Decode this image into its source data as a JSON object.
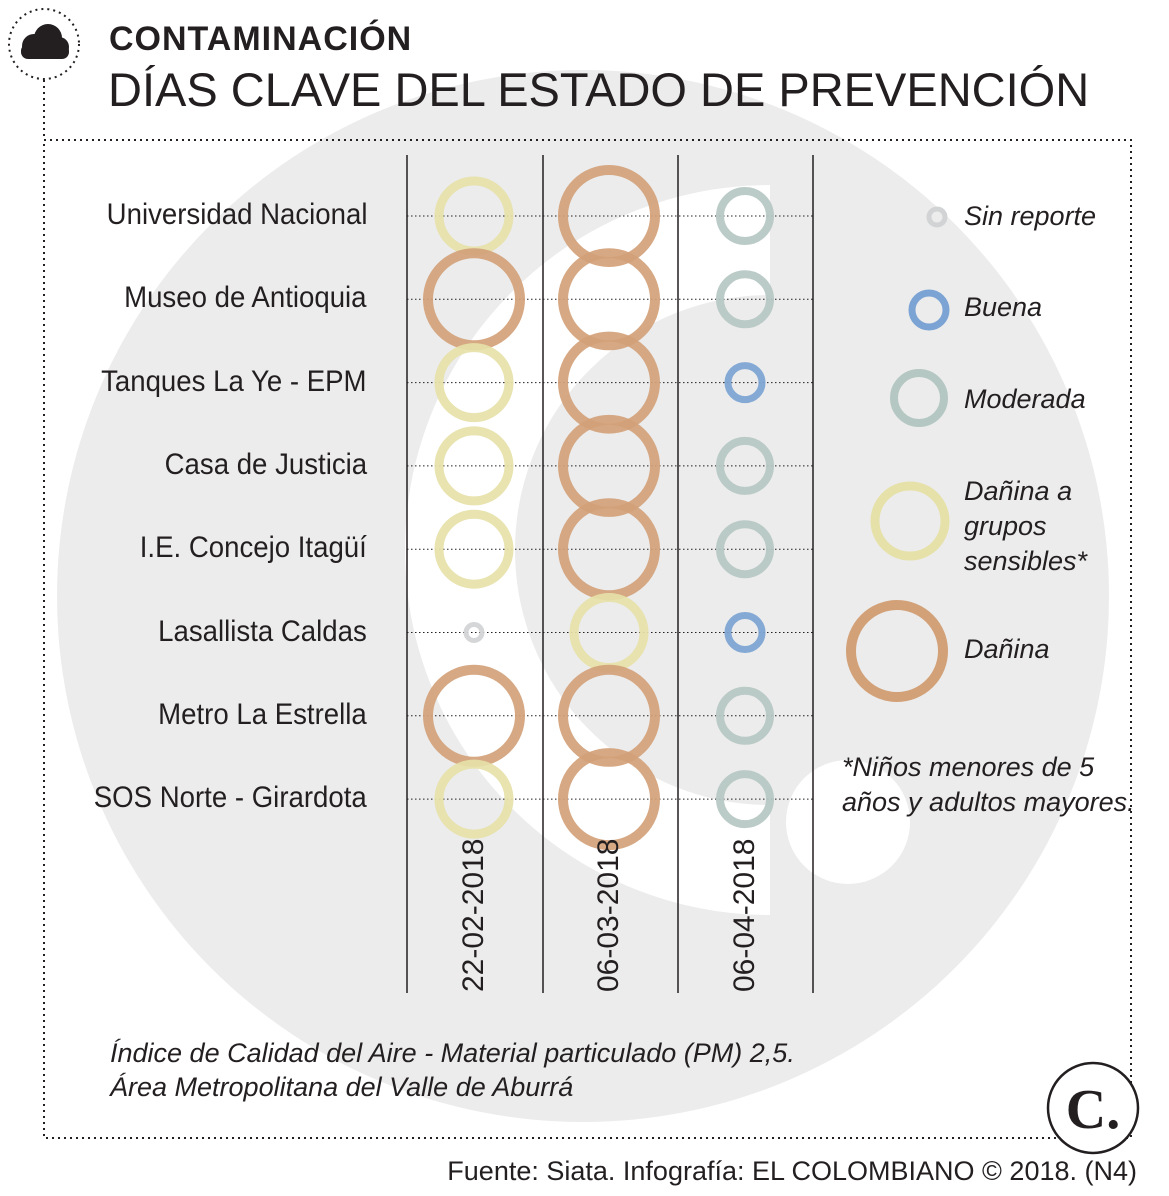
{
  "header": {
    "kicker": "CONTAMINACIÓN",
    "title": "DÍAS CLAVE DEL ESTADO DE PREVENCIÓN"
  },
  "colors": {
    "sin_reporte": "#d1d3d4",
    "buena": "#7ba3d3",
    "moderada": "#b5c7c2",
    "danina_grupos": "#e6e1a8",
    "danina": "#d2a178",
    "watermark": "#ececec"
  },
  "chart_data": {
    "type": "dot-matrix",
    "dates": [
      "22-02-2018",
      "06-03-2018",
      "06-04-2018"
    ],
    "stations": [
      "Universidad Nacional",
      "Museo de Antioquia",
      "Tanques La Ye - EPM",
      "Casa de Justicia",
      "I.E. Concejo Itagüí",
      "Lasallista Caldas",
      "Metro La Estrella",
      "SOS Norte - Girardota"
    ],
    "categories": [
      {
        "key": "sin_reporte",
        "label": "Sin reporte"
      },
      {
        "key": "buena",
        "label": "Buena"
      },
      {
        "key": "moderada",
        "label": "Moderada"
      },
      {
        "key": "danina_grupos",
        "label": "Dañina a grupos sensibles*"
      },
      {
        "key": "danina",
        "label": "Dañina"
      }
    ],
    "values": [
      [
        "danina_grupos",
        "danina",
        "moderada"
      ],
      [
        "danina",
        "danina",
        "moderada"
      ],
      [
        "danina_grupos",
        "danina",
        "buena"
      ],
      [
        "danina_grupos",
        "danina",
        "moderada"
      ],
      [
        "danina_grupos",
        "danina",
        "moderada"
      ],
      [
        "sin_reporte",
        "danina_grupos",
        "buena"
      ],
      [
        "danina",
        "danina",
        "moderada"
      ],
      [
        "danina_grupos",
        "danina",
        "moderada"
      ]
    ],
    "legend_placement": "right"
  },
  "legend": {
    "sin_reporte": "Sin reporte",
    "buena": "Buena",
    "moderada": "Moderada",
    "danina_grupos_lines": [
      "Dañina a",
      "grupos",
      "sensibles*"
    ],
    "danina": "Dañina"
  },
  "footnote_lines": [
    "*Niños menores de 5",
    "años y adultos mayores."
  ],
  "notes": {
    "line1": "Índice de Calidad del Aire - Material particulado (PM) 2,5.",
    "line2": "Área Metropolitana del Valle de Aburrá"
  },
  "source": "Fuente: Siata. Infografía: EL COLOMBIANO © 2018. (N4)",
  "logo": {
    "letter": "C."
  }
}
